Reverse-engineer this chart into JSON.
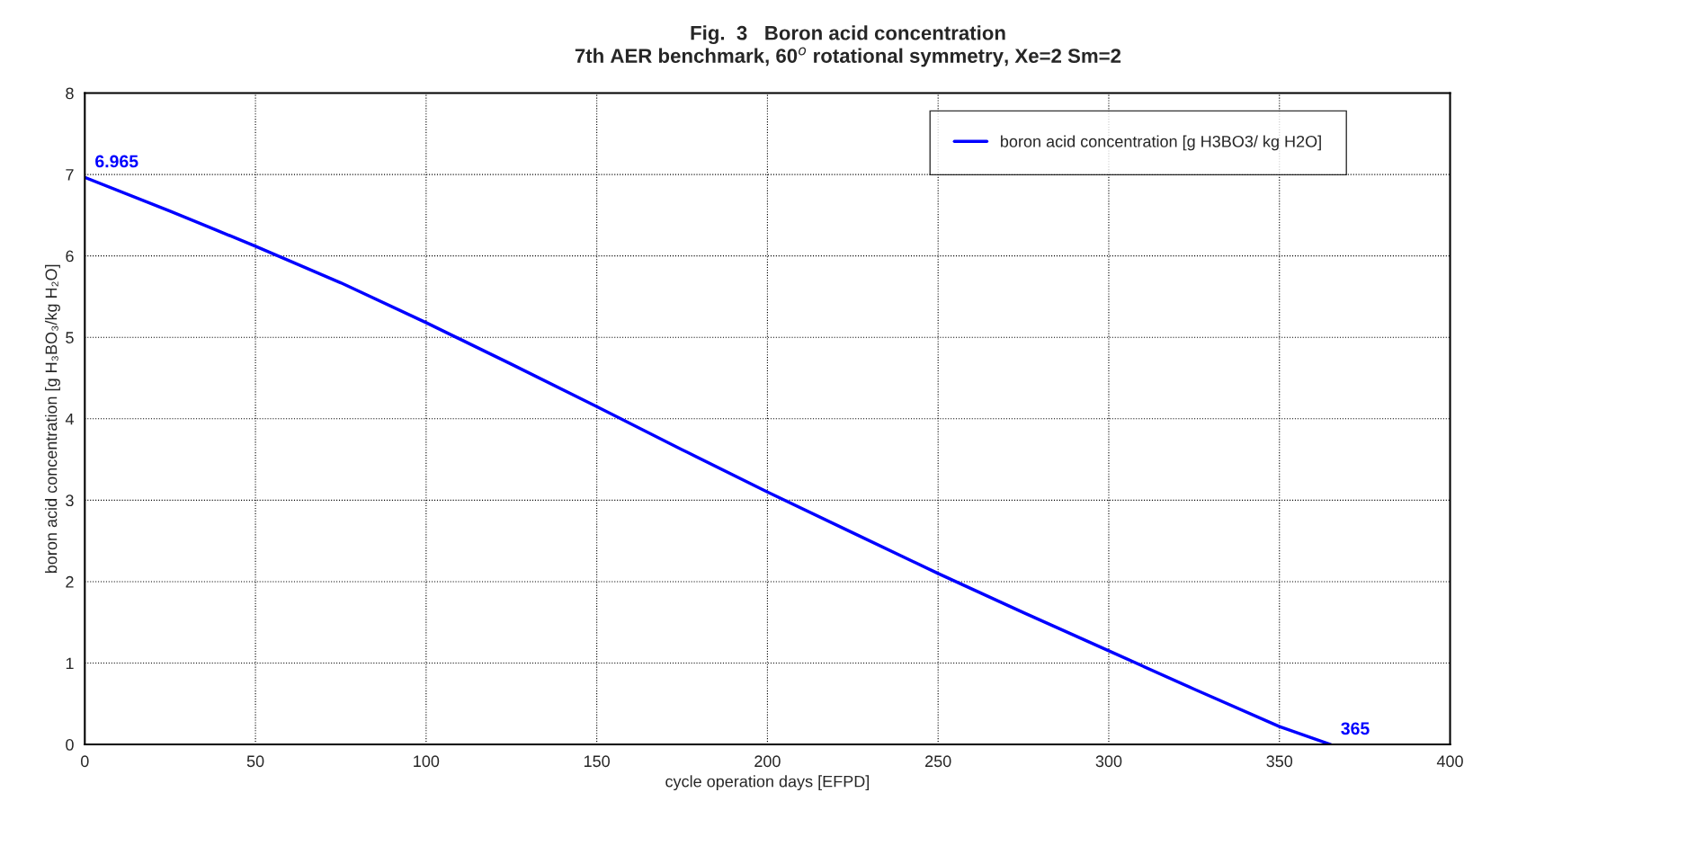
{
  "chart_data": {
    "type": "line",
    "title": "Fig.  3   Boron acid concentration\n7th AER benchmark, 60$^{o}$ rotational symmetry, Xe=2 Sm=2",
    "xlabel": "cycle operation days [EFPD]",
    "ylabel": "boron acid concentration [g H₃BO₃/kg H₂O]",
    "x": [
      0,
      25,
      50,
      75,
      100,
      125,
      150,
      175,
      200,
      225,
      250,
      275,
      300,
      325,
      350,
      365
    ],
    "series": [
      {
        "name": "boron acid concentration [g H3BO3/ kg H2O]",
        "color": "#0000ff",
        "values": [
          6.965,
          6.55,
          6.12,
          5.67,
          5.18,
          4.67,
          4.15,
          3.62,
          3.1,
          2.6,
          2.1,
          1.62,
          1.15,
          0.68,
          0.22,
          0.0
        ]
      }
    ],
    "xlim": [
      0,
      400
    ],
    "xticks": [
      0,
      50,
      100,
      150,
      200,
      250,
      300,
      350,
      400
    ],
    "ylim": [
      0,
      8
    ],
    "yticks": [
      0,
      1,
      2,
      3,
      4,
      5,
      6,
      7,
      8
    ],
    "grid": true,
    "legend": "top right",
    "line_style": "solid",
    "marker": "none",
    "annotations": [
      {
        "text": "6.965",
        "x": 0,
        "y": 6.965
      },
      {
        "text": "365",
        "x": 365,
        "y": 0
      }
    ]
  }
}
